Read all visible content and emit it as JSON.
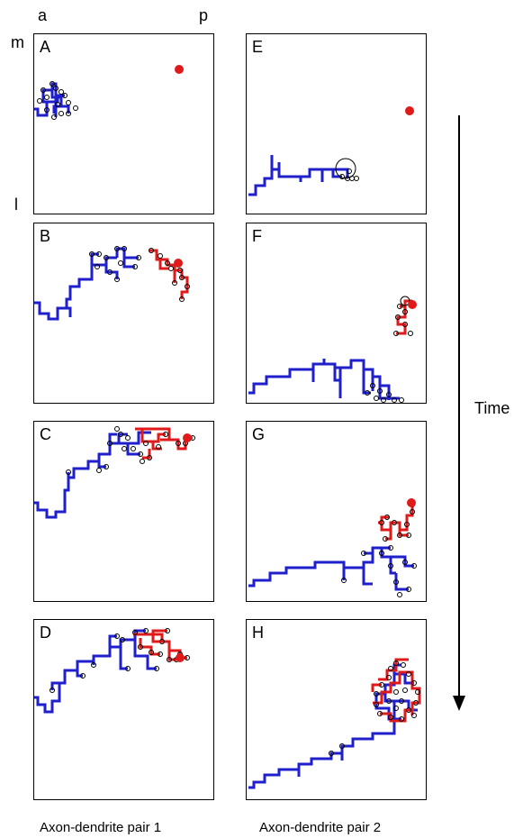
{
  "axes": {
    "anterior": "a",
    "posterior": "p",
    "medial": "m",
    "lateral": "l"
  },
  "time_label": "Time",
  "captions": {
    "col1": "Axon-dendrite pair 1",
    "col2": "Axon-dendrite pair 2"
  },
  "panels": [
    "A",
    "B",
    "C",
    "D",
    "E",
    "F",
    "G",
    "H"
  ],
  "colors": {
    "axon": "#1f1fcc",
    "dendrite": "#e01a1a",
    "marker": "#000000"
  }
}
